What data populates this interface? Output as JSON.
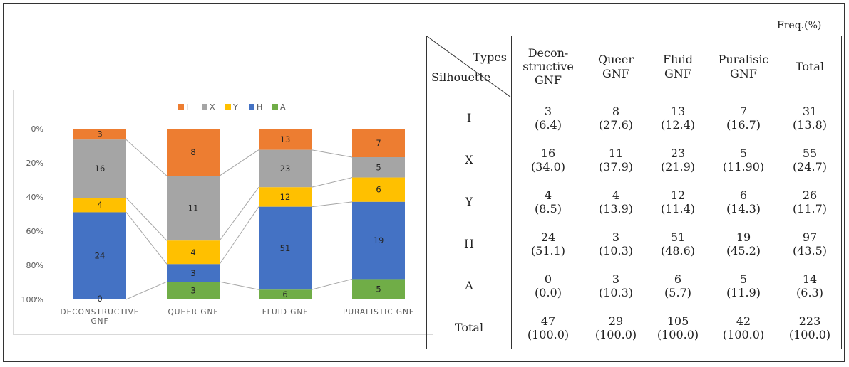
{
  "chart_data": {
    "type": "bar",
    "stacked": "100%",
    "categories": [
      "DECONSTRUCTIVE GNF",
      "QUEER GNF",
      "FLUID GNF",
      "PURALISTIC GNF"
    ],
    "category_lines": [
      [
        "DECONSTRUCTIVE",
        "GNF"
      ],
      [
        "QUEER GNF"
      ],
      [
        "FLUID GNF"
      ],
      [
        "PURALISTIC GNF"
      ]
    ],
    "series": [
      {
        "name": "I",
        "color": "#ED7D31",
        "values": [
          3,
          8,
          13,
          7
        ]
      },
      {
        "name": "X",
        "color": "#A5A5A5",
        "values": [
          16,
          11,
          23,
          5
        ]
      },
      {
        "name": "Y",
        "color": "#FFC000",
        "values": [
          4,
          4,
          12,
          6
        ]
      },
      {
        "name": "H",
        "color": "#4472C4",
        "values": [
          24,
          3,
          51,
          19
        ]
      },
      {
        "name": "A",
        "color": "#70AD47",
        "values": [
          0,
          3,
          6,
          5
        ]
      }
    ],
    "y_ticks": [
      "0%",
      "20%",
      "40%",
      "60%",
      "80%",
      "100%"
    ],
    "ylim": [
      0,
      100
    ],
    "y_inverted": true,
    "legend": "top-center",
    "series_connector_lines": true
  },
  "table": {
    "unit_label": "Freq.(%)",
    "corner_top": "Types",
    "corner_bottom": "Silhouette",
    "headers": [
      [
        "Decon-",
        "structive",
        "GNF"
      ],
      [
        "Queer",
        "GNF"
      ],
      [
        "Fluid",
        "GNF"
      ],
      [
        "Puralisic",
        "GNF"
      ],
      [
        "Total"
      ]
    ],
    "rows": [
      {
        "label": "I",
        "cells": [
          [
            "3",
            "(6.4)"
          ],
          [
            "8",
            "(27.6)"
          ],
          [
            "13",
            "(12.4)"
          ],
          [
            "7",
            "(16.7)"
          ],
          [
            "31",
            "(13.8)"
          ]
        ]
      },
      {
        "label": "X",
        "cells": [
          [
            "16",
            "(34.0)"
          ],
          [
            "11",
            "(37.9)"
          ],
          [
            "23",
            "(21.9)"
          ],
          [
            "5",
            "(11.90)"
          ],
          [
            "55",
            "(24.7)"
          ]
        ]
      },
      {
        "label": "Y",
        "cells": [
          [
            "4",
            "(8.5)"
          ],
          [
            "4",
            "(13.9)"
          ],
          [
            "12",
            "(11.4)"
          ],
          [
            "6",
            "(14.3)"
          ],
          [
            "26",
            "(11.7)"
          ]
        ]
      },
      {
        "label": "H",
        "cells": [
          [
            "24",
            "(51.1)"
          ],
          [
            "3",
            "(10.3)"
          ],
          [
            "51",
            "(48.6)"
          ],
          [
            "19",
            "(45.2)"
          ],
          [
            "97",
            "(43.5)"
          ]
        ]
      },
      {
        "label": "A",
        "cells": [
          [
            "0",
            "(0.0)"
          ],
          [
            "3",
            "(10.3)"
          ],
          [
            "6",
            "(5.7)"
          ],
          [
            "5",
            "(11.9)"
          ],
          [
            "14",
            "(6.3)"
          ]
        ]
      },
      {
        "label": "Total",
        "cells": [
          [
            "47",
            "(100.0)"
          ],
          [
            "29",
            "(100.0)"
          ],
          [
            "105",
            "(100.0)"
          ],
          [
            "42",
            "(100.0)"
          ],
          [
            "223",
            "(100.0)"
          ]
        ]
      }
    ]
  }
}
